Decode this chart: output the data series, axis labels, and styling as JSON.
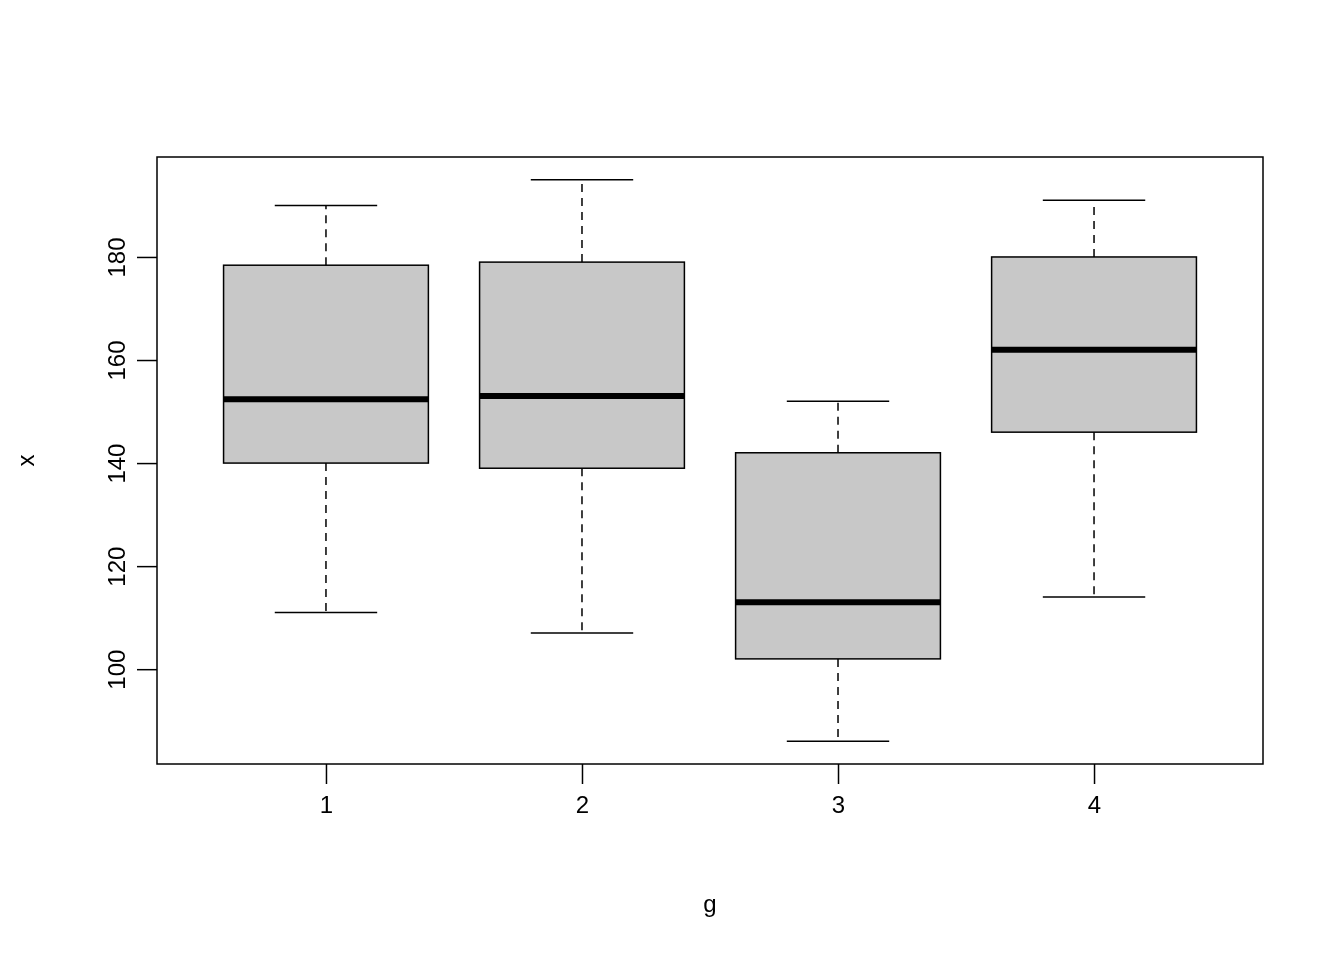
{
  "chart_data": {
    "type": "box",
    "xlabel": "g",
    "ylabel": "x",
    "categories": [
      "1",
      "2",
      "3",
      "4"
    ],
    "color": "#c8c8c8",
    "ylim": [
      81.6,
      199.4
    ],
    "yticks": [
      100,
      120,
      140,
      160,
      180
    ],
    "grid": false,
    "boxes": [
      {
        "low": 111,
        "q1": 140,
        "median": 152.4,
        "q3": 178.4,
        "high": 190
      },
      {
        "low": 107,
        "q1": 139,
        "median": 153,
        "q3": 179,
        "high": 195
      },
      {
        "low": 86,
        "q1": 102,
        "median": 113,
        "q3": 142,
        "high": 152
      },
      {
        "low": 114,
        "q1": 146,
        "median": 162,
        "q3": 180,
        "high": 191
      }
    ]
  }
}
